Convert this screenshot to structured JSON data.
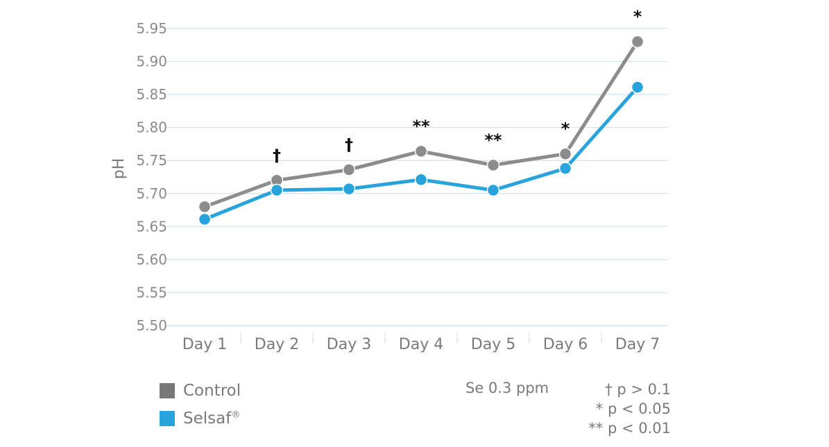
{
  "chart_data": {
    "type": "line",
    "title": "",
    "xlabel": "",
    "ylabel": "pH",
    "categories": [
      "Day 1",
      "Day 2",
      "Day 3",
      "Day 4",
      "Day 5",
      "Day 6",
      "Day 7"
    ],
    "ylim": [
      5.5,
      5.95
    ],
    "yticks": [
      "5.50",
      "5.55",
      "5.60",
      "5.65",
      "5.70",
      "5.75",
      "5.80",
      "5.85",
      "5.90",
      "5.95"
    ],
    "grid": true,
    "series": [
      {
        "name": "Control",
        "color": "#8c8c8c",
        "values": [
          5.68,
          5.72,
          5.736,
          5.764,
          5.743,
          5.76,
          5.93
        ]
      },
      {
        "name": "Selsaf",
        "color": "#29a3dc",
        "values": [
          5.661,
          5.705,
          5.707,
          5.721,
          5.705,
          5.738,
          5.861
        ]
      }
    ],
    "significance": [
      "",
      "†",
      "†",
      "**",
      "**",
      "*",
      "*"
    ],
    "legend_position": "bottom-left"
  },
  "legend": {
    "control_label": "Control",
    "selsaf_label": "Selsaf",
    "selsaf_mark": "®"
  },
  "notes": {
    "dose": "Se 0.3 ppm",
    "p_dagger": "† p > 0.1",
    "p_single": "* p < 0.05",
    "p_double": "** p < 0.01"
  }
}
